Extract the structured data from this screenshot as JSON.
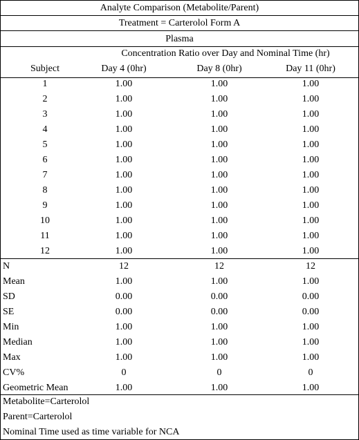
{
  "title": "Analyte Comparison (Metabolite/Parent)",
  "treatment": "Treatment = Carterolol Form A",
  "matrix": "Plasma",
  "group_header": "Concentration Ratio over Day and Nominal Time (hr)",
  "columns": [
    "Subject",
    "Day 4 (0hr)",
    "Day 8 (0hr)",
    "Day 11 (0hr)"
  ],
  "subjects": [
    {
      "id": "1",
      "values": [
        "1.00",
        "1.00",
        "1.00"
      ]
    },
    {
      "id": "2",
      "values": [
        "1.00",
        "1.00",
        "1.00"
      ]
    },
    {
      "id": "3",
      "values": [
        "1.00",
        "1.00",
        "1.00"
      ]
    },
    {
      "id": "4",
      "values": [
        "1.00",
        "1.00",
        "1.00"
      ]
    },
    {
      "id": "5",
      "values": [
        "1.00",
        "1.00",
        "1.00"
      ]
    },
    {
      "id": "6",
      "values": [
        "1.00",
        "1.00",
        "1.00"
      ]
    },
    {
      "id": "7",
      "values": [
        "1.00",
        "1.00",
        "1.00"
      ]
    },
    {
      "id": "8",
      "values": [
        "1.00",
        "1.00",
        "1.00"
      ]
    },
    {
      "id": "9",
      "values": [
        "1.00",
        "1.00",
        "1.00"
      ]
    },
    {
      "id": "10",
      "values": [
        "1.00",
        "1.00",
        "1.00"
      ]
    },
    {
      "id": "11",
      "values": [
        "1.00",
        "1.00",
        "1.00"
      ]
    },
    {
      "id": "12",
      "values": [
        "1.00",
        "1.00",
        "1.00"
      ]
    }
  ],
  "stats": [
    {
      "label": "N",
      "values": [
        "12",
        "12",
        "12"
      ]
    },
    {
      "label": "Mean",
      "values": [
        "1.00",
        "1.00",
        "1.00"
      ]
    },
    {
      "label": "SD",
      "values": [
        "0.00",
        "0.00",
        "0.00"
      ]
    },
    {
      "label": "SE",
      "values": [
        "0.00",
        "0.00",
        "0.00"
      ]
    },
    {
      "label": "Min",
      "values": [
        "1.00",
        "1.00",
        "1.00"
      ]
    },
    {
      "label": "Median",
      "values": [
        "1.00",
        "1.00",
        "1.00"
      ]
    },
    {
      "label": "Max",
      "values": [
        "1.00",
        "1.00",
        "1.00"
      ]
    },
    {
      "label": "CV%",
      "values": [
        "0",
        "0",
        "0"
      ]
    },
    {
      "label": "Geometric Mean",
      "values": [
        "1.00",
        "1.00",
        "1.00"
      ]
    }
  ],
  "footnotes": [
    "Metabolite=Carterolol",
    "Parent=Carterolol",
    "Nominal Time used as time variable for NCA"
  ]
}
